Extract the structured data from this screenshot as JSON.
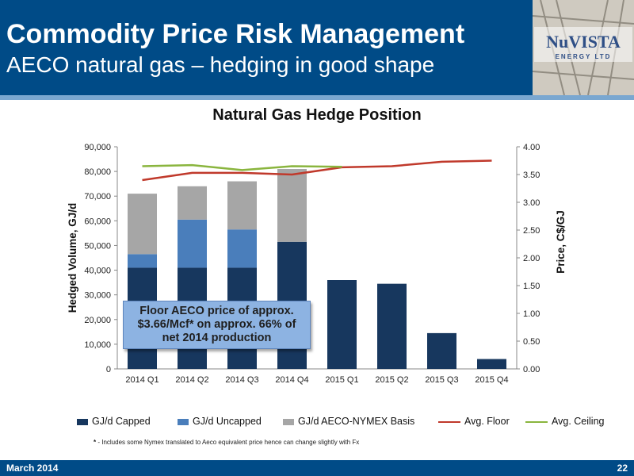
{
  "header": {
    "title": "Commodity Price Risk Management",
    "subtitle": "AECO natural gas – hedging in good shape",
    "logo_text_main": "NuVISTA",
    "logo_text_sub": "ENERGY LTD"
  },
  "callout": {
    "line1": "Floor AECO price of approx.",
    "line2": "$3.66/Mcf* on approx. 66% of",
    "line3": "net 2014 production"
  },
  "footnote": {
    "marker": "*",
    "text": " - Includes some Nymex translated to Aeco equivalent price hence can change slightly with Fx"
  },
  "footer": {
    "date": "March 2014",
    "page": "22"
  },
  "colors": {
    "header_bg": "#004b87",
    "capped": "#17375e",
    "uncapped": "#4a7ebb",
    "basis": "#a6a6a6",
    "floor": "#c0392b",
    "ceiling": "#8ab53e"
  },
  "chart_data": {
    "type": "bar",
    "title": "Natural Gas Hedge Position",
    "ylabel": "Hedged Volume, GJ/d",
    "y2label": "Price, C$/GJ",
    "xlabel": "",
    "categories": [
      "2014 Q1",
      "2014 Q2",
      "2014 Q3",
      "2014 Q4",
      "2015 Q1",
      "2015 Q2",
      "2015 Q3",
      "2015 Q4"
    ],
    "ylim": [
      0,
      90000
    ],
    "y2lim": [
      0,
      4
    ],
    "y_ticks": [
      "0",
      "10,000",
      "20,000",
      "30,000",
      "40,000",
      "50,000",
      "60,000",
      "70,000",
      "80,000",
      "90,000"
    ],
    "y2_ticks": [
      "0.00",
      "0.50",
      "1.00",
      "1.50",
      "2.00",
      "2.50",
      "3.00",
      "3.50",
      "4.00"
    ],
    "stacked": true,
    "series": [
      {
        "name": "GJ/d Capped",
        "kind": "bar",
        "values": [
          41000,
          41000,
          41000,
          51500,
          36000,
          34500,
          14500,
          4000
        ]
      },
      {
        "name": "GJ/d Uncapped",
        "kind": "bar",
        "values": [
          5500,
          19500,
          15500,
          0,
          0,
          0,
          0,
          0
        ]
      },
      {
        "name": "GJ/d AECO-NYMEX Basis",
        "kind": "bar",
        "values": [
          24500,
          13500,
          19500,
          29500,
          0,
          0,
          0,
          0
        ]
      },
      {
        "name": "Avg. Floor",
        "kind": "line",
        "axis": "right",
        "values": [
          3.4,
          3.53,
          3.53,
          3.5,
          3.63,
          3.65,
          3.73,
          3.75
        ]
      },
      {
        "name": "Avg. Ceiling",
        "kind": "line",
        "axis": "right",
        "values": [
          3.65,
          3.67,
          3.58,
          3.65,
          3.64,
          null,
          null,
          null
        ]
      }
    ],
    "legend_position": "bottom",
    "grid": false
  }
}
